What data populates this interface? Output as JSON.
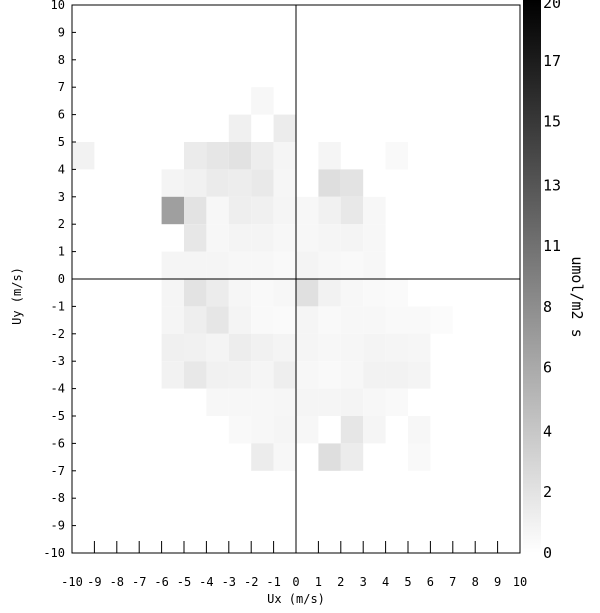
{
  "chart_data": {
    "type": "heatmap",
    "title": "",
    "xlabel": "Ux (m/s)",
    "ylabel": "Uy (m/s)",
    "xlim": [
      -10,
      10
    ],
    "ylim": [
      -10,
      10
    ],
    "x_ticks": [
      -10,
      -9,
      -8,
      -7,
      -6,
      -5,
      -4,
      -3,
      -2,
      -1,
      0,
      1,
      2,
      3,
      4,
      5,
      6,
      7,
      8,
      9,
      10
    ],
    "y_ticks": [
      -10,
      -9,
      -8,
      -7,
      -6,
      -5,
      -4,
      -3,
      -2,
      -1,
      0,
      1,
      2,
      3,
      4,
      5,
      6,
      7,
      8,
      9,
      10
    ],
    "colorbar": {
      "label": "umol/m2 s",
      "range": [
        0,
        20
      ],
      "tick_labels": [
        "0",
        "2",
        "4",
        "6",
        "8",
        "11",
        "13",
        "15",
        "17",
        "20"
      ],
      "tick_values": [
        0,
        2.2,
        4.4,
        6.7,
        8.9,
        11.1,
        13.3,
        15.6,
        17.8,
        20
      ],
      "color_min": "#ffffff",
      "color_max": "#000000"
    },
    "crosshair": {
      "x": 0,
      "y": 0
    },
    "grid": false,
    "cell_size": 1,
    "cells_note": "each cell: [x_left, y_bottom, value]",
    "cells": [
      [
        -10,
        4,
        1.0
      ],
      [
        -2,
        6,
        0.6
      ],
      [
        -3,
        5,
        1.2
      ],
      [
        -1,
        5,
        1.5
      ],
      [
        -5,
        4,
        1.6
      ],
      [
        -4,
        4,
        2.0
      ],
      [
        -3,
        4,
        2.3
      ],
      [
        -2,
        4,
        1.4
      ],
      [
        -1,
        4,
        0.8
      ],
      [
        1,
        4,
        0.8
      ],
      [
        4,
        4,
        0.5
      ],
      [
        -6,
        3,
        0.9
      ],
      [
        -5,
        3,
        1.1
      ],
      [
        -4,
        3,
        1.6
      ],
      [
        -3,
        3,
        1.4
      ],
      [
        -2,
        3,
        1.7
      ],
      [
        -1,
        3,
        0.7
      ],
      [
        1,
        3,
        2.6
      ],
      [
        2,
        3,
        2.2
      ],
      [
        -6,
        2,
        7.5
      ],
      [
        -5,
        2,
        2.2
      ],
      [
        -4,
        2,
        0.6
      ],
      [
        -3,
        2,
        1.3
      ],
      [
        -2,
        2,
        1.2
      ],
      [
        -1,
        2,
        0.8
      ],
      [
        0,
        2,
        0.6
      ],
      [
        1,
        2,
        1.1
      ],
      [
        2,
        2,
        1.8
      ],
      [
        3,
        2,
        0.6
      ],
      [
        -5,
        1,
        1.9
      ],
      [
        -4,
        1,
        0.6
      ],
      [
        -3,
        1,
        0.9
      ],
      [
        -2,
        1,
        0.9
      ],
      [
        -1,
        1,
        0.6
      ],
      [
        0,
        1,
        0.6
      ],
      [
        1,
        1,
        0.8
      ],
      [
        2,
        1,
        0.9
      ],
      [
        3,
        1,
        0.6
      ],
      [
        -6,
        0,
        0.8
      ],
      [
        -5,
        0,
        0.8
      ],
      [
        -4,
        0,
        0.8
      ],
      [
        -3,
        0,
        0.6
      ],
      [
        -2,
        0,
        0.6
      ],
      [
        -1,
        0,
        0.5
      ],
      [
        0,
        0,
        0.9
      ],
      [
        1,
        0,
        0.6
      ],
      [
        2,
        0,
        0.5
      ],
      [
        3,
        0,
        0.6
      ],
      [
        -6,
        -1,
        0.8
      ],
      [
        -5,
        -1,
        2.2
      ],
      [
        -4,
        -1,
        1.5
      ],
      [
        -3,
        -1,
        0.7
      ],
      [
        -2,
        -1,
        0.5
      ],
      [
        -1,
        -1,
        0.6
      ],
      [
        0,
        -1,
        2.4
      ],
      [
        1,
        -1,
        1.0
      ],
      [
        2,
        -1,
        0.6
      ],
      [
        3,
        -1,
        0.5
      ],
      [
        4,
        -1,
        0.4
      ],
      [
        -6,
        -2,
        0.8
      ],
      [
        -5,
        -2,
        1.3
      ],
      [
        -4,
        -2,
        2.0
      ],
      [
        -3,
        -2,
        0.9
      ],
      [
        -2,
        -2,
        0.5
      ],
      [
        -1,
        -2,
        0.4
      ],
      [
        0,
        -2,
        0.8
      ],
      [
        1,
        -2,
        0.5
      ],
      [
        2,
        -2,
        0.6
      ],
      [
        3,
        -2,
        0.6
      ],
      [
        4,
        -2,
        0.5
      ],
      [
        5,
        -2,
        0.5
      ],
      [
        6,
        -2,
        0.3
      ],
      [
        -6,
        -3,
        1.2
      ],
      [
        -5,
        -3,
        1.1
      ],
      [
        -4,
        -3,
        0.9
      ],
      [
        -3,
        -3,
        1.4
      ],
      [
        -2,
        -3,
        1.1
      ],
      [
        -1,
        -3,
        0.9
      ],
      [
        0,
        -3,
        0.8
      ],
      [
        1,
        -3,
        0.6
      ],
      [
        2,
        -3,
        0.7
      ],
      [
        3,
        -3,
        0.9
      ],
      [
        4,
        -3,
        0.8
      ],
      [
        5,
        -3,
        0.7
      ],
      [
        -6,
        -4,
        1.0
      ],
      [
        -5,
        -4,
        1.8
      ],
      [
        -4,
        -4,
        1.1
      ],
      [
        -3,
        -4,
        1.0
      ],
      [
        -2,
        -4,
        0.8
      ],
      [
        -1,
        -4,
        1.3
      ],
      [
        0,
        -4,
        0.6
      ],
      [
        1,
        -4,
        0.5
      ],
      [
        2,
        -4,
        0.6
      ],
      [
        3,
        -4,
        1.0
      ],
      [
        4,
        -4,
        1.0
      ],
      [
        5,
        -4,
        0.9
      ],
      [
        -4,
        -5,
        0.6
      ],
      [
        -3,
        -5,
        0.6
      ],
      [
        -2,
        -5,
        0.6
      ],
      [
        -1,
        -5,
        0.7
      ],
      [
        0,
        -5,
        0.8
      ],
      [
        1,
        -5,
        0.8
      ],
      [
        2,
        -5,
        0.9
      ],
      [
        3,
        -5,
        0.6
      ],
      [
        4,
        -5,
        0.5
      ],
      [
        -3,
        -6,
        0.5
      ],
      [
        -2,
        -6,
        0.6
      ],
      [
        -1,
        -6,
        0.8
      ],
      [
        0,
        -6,
        0.6
      ],
      [
        2,
        -6,
        2.0
      ],
      [
        3,
        -6,
        0.8
      ],
      [
        5,
        -6,
        0.6
      ],
      [
        -2,
        -7,
        1.5
      ],
      [
        -1,
        -7,
        0.6
      ],
      [
        1,
        -7,
        2.6
      ],
      [
        2,
        -7,
        1.5
      ],
      [
        5,
        -7,
        0.5
      ]
    ]
  }
}
